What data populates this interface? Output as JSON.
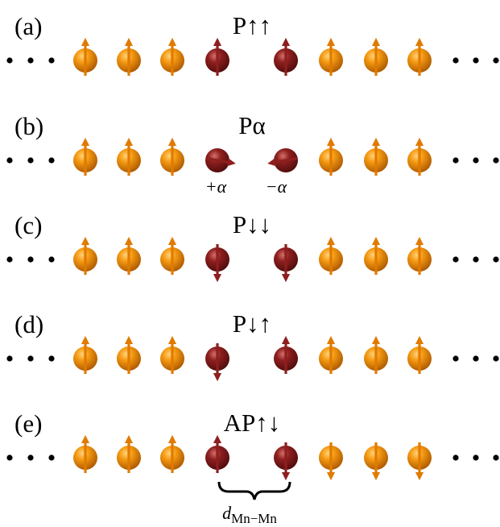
{
  "panels": [
    {
      "label": "(a)",
      "title": "P↑↑"
    },
    {
      "label": "(b)",
      "title": "Pα",
      "annotations": [
        "+α",
        "−α"
      ]
    },
    {
      "label": "(c)",
      "title": "P↓↓"
    },
    {
      "label": "(d)",
      "title": "P↓↑"
    },
    {
      "label": "(e)",
      "title": "AP↑↓",
      "distance_label": {
        "symbol": "d",
        "subscript": "Mn−Mn"
      }
    }
  ]
}
